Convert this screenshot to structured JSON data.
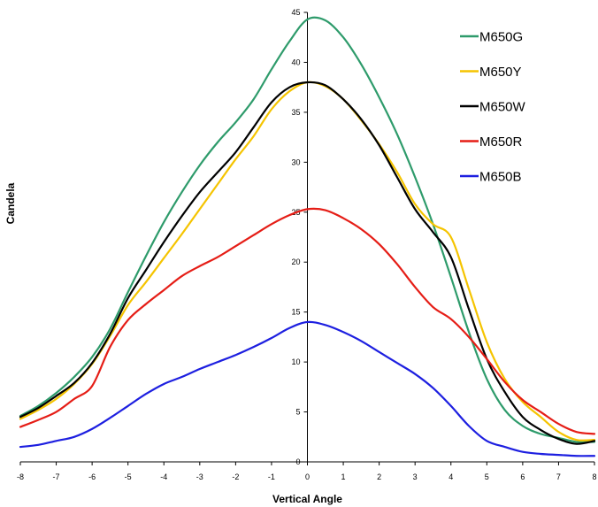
{
  "chart_data": {
    "type": "line",
    "title": "",
    "xlabel": "Vertical Angle",
    "ylabel": "Candela",
    "xlim": [
      -8,
      8
    ],
    "ylim": [
      0,
      45
    ],
    "x_ticks": [
      "-8",
      "-7",
      "-6",
      "-5",
      "-4",
      "-3",
      "-2",
      "-1",
      "0",
      "1",
      "2",
      "3",
      "4",
      "5",
      "6",
      "7",
      "8"
    ],
    "y_ticks": [
      "0",
      "5",
      "10",
      "15",
      "20",
      "25",
      "30",
      "35",
      "40",
      "45"
    ],
    "grid": false,
    "legend_position": "top-right",
    "x": [
      -8,
      -7.5,
      -7,
      -6.5,
      -6,
      -5.5,
      -5,
      -4.5,
      -4,
      -3.5,
      -3,
      -2.5,
      -2,
      -1.5,
      -1,
      -0.5,
      0,
      0.5,
      1,
      1.5,
      2,
      2.5,
      3,
      3.5,
      4,
      4.5,
      5,
      5.5,
      6,
      6.5,
      7,
      7.5,
      8
    ],
    "series": [
      {
        "name": "M650G",
        "color": "#2e9b6b",
        "values": [
          4.6,
          5.6,
          6.9,
          8.5,
          10.5,
          13.3,
          17.0,
          20.6,
          24.0,
          27.0,
          29.7,
          32.0,
          34.0,
          36.3,
          39.3,
          42.1,
          44.3,
          44.2,
          42.5,
          39.8,
          36.5,
          32.8,
          28.5,
          23.8,
          18.5,
          13.0,
          8.3,
          5.2,
          3.6,
          2.8,
          2.4,
          2.0,
          2.0
        ]
      },
      {
        "name": "M650Y",
        "color": "#f5c400",
        "values": [
          4.3,
          5.2,
          6.3,
          7.8,
          9.8,
          12.6,
          15.7,
          18.0,
          20.4,
          22.8,
          25.3,
          27.8,
          30.3,
          32.6,
          35.3,
          37.1,
          38.0,
          37.6,
          36.3,
          34.2,
          31.8,
          29.0,
          25.8,
          23.8,
          22.5,
          17.3,
          12.0,
          8.3,
          6.0,
          4.5,
          3.0,
          2.2,
          2.2
        ]
      },
      {
        "name": "M650W",
        "color": "#000000",
        "values": [
          4.5,
          5.4,
          6.6,
          7.9,
          9.9,
          12.8,
          16.4,
          19.2,
          22.0,
          24.6,
          27.0,
          29.0,
          31.0,
          33.5,
          36.0,
          37.5,
          38.0,
          37.7,
          36.3,
          34.3,
          31.7,
          28.5,
          25.3,
          23.0,
          20.5,
          15.3,
          10.3,
          7.0,
          4.5,
          3.2,
          2.3,
          1.8,
          2.1
        ]
      },
      {
        "name": "M650R",
        "color": "#e51d16",
        "values": [
          3.5,
          4.2,
          5.0,
          6.3,
          7.6,
          11.5,
          14.2,
          15.8,
          17.2,
          18.6,
          19.6,
          20.5,
          21.6,
          22.7,
          23.8,
          24.7,
          25.3,
          25.2,
          24.4,
          23.3,
          21.8,
          19.8,
          17.5,
          15.5,
          14.3,
          12.5,
          10.3,
          8.0,
          6.2,
          5.0,
          3.8,
          3.0,
          2.8
        ]
      },
      {
        "name": "M650B",
        "color": "#1d1fe0",
        "values": [
          1.5,
          1.7,
          2.1,
          2.5,
          3.3,
          4.4,
          5.6,
          6.8,
          7.8,
          8.5,
          9.3,
          10.0,
          10.7,
          11.5,
          12.4,
          13.4,
          14.0,
          13.7,
          13.0,
          12.1,
          11.0,
          9.9,
          8.8,
          7.4,
          5.6,
          3.6,
          2.1,
          1.5,
          1.0,
          0.8,
          0.7,
          0.6,
          0.6
        ]
      }
    ]
  }
}
